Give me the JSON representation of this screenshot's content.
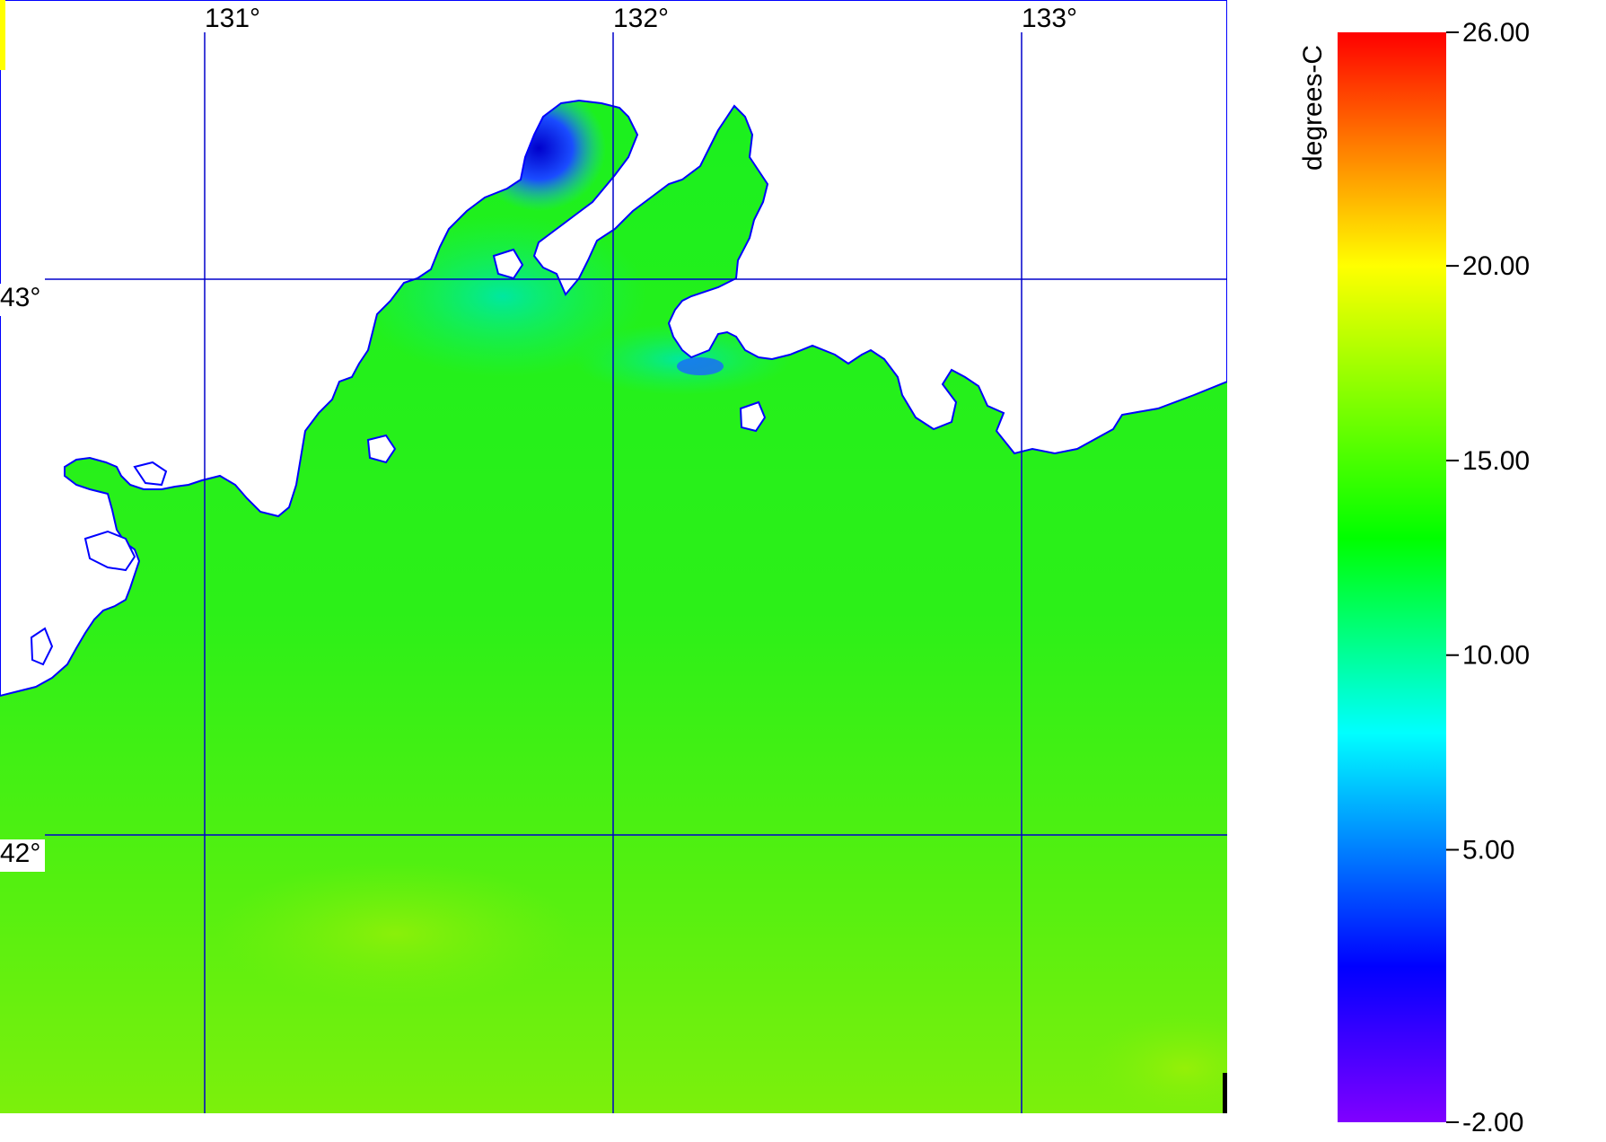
{
  "map": {
    "longitude_labels": [
      "131°",
      "132°",
      "133°"
    ],
    "latitude_labels": [
      "43°",
      "42°"
    ],
    "grid_color": "#0000cc",
    "coastline_color": "#0000ff",
    "land_color": "#ffffff"
  },
  "colorbar": {
    "unit_label": "degrees-C",
    "min": -2.0,
    "max": 26.0,
    "tick_labels": [
      "26.00",
      "20.00",
      "15.00",
      "10.00",
      "5.00",
      "-2.00"
    ],
    "tick_values": [
      26.0,
      20.0,
      15.0,
      10.0,
      5.0,
      -2.0
    ],
    "stops": [
      {
        "value": -2.0,
        "color": "#8000ff"
      },
      {
        "value": 2.0,
        "color": "#0000ff"
      },
      {
        "value": 8.0,
        "color": "#00ffff"
      },
      {
        "value": 13.0,
        "color": "#00ff00"
      },
      {
        "value": 20.0,
        "color": "#ffff00"
      },
      {
        "value": 23.0,
        "color": "#ff8000"
      },
      {
        "value": 26.0,
        "color": "#ff0000"
      }
    ]
  }
}
